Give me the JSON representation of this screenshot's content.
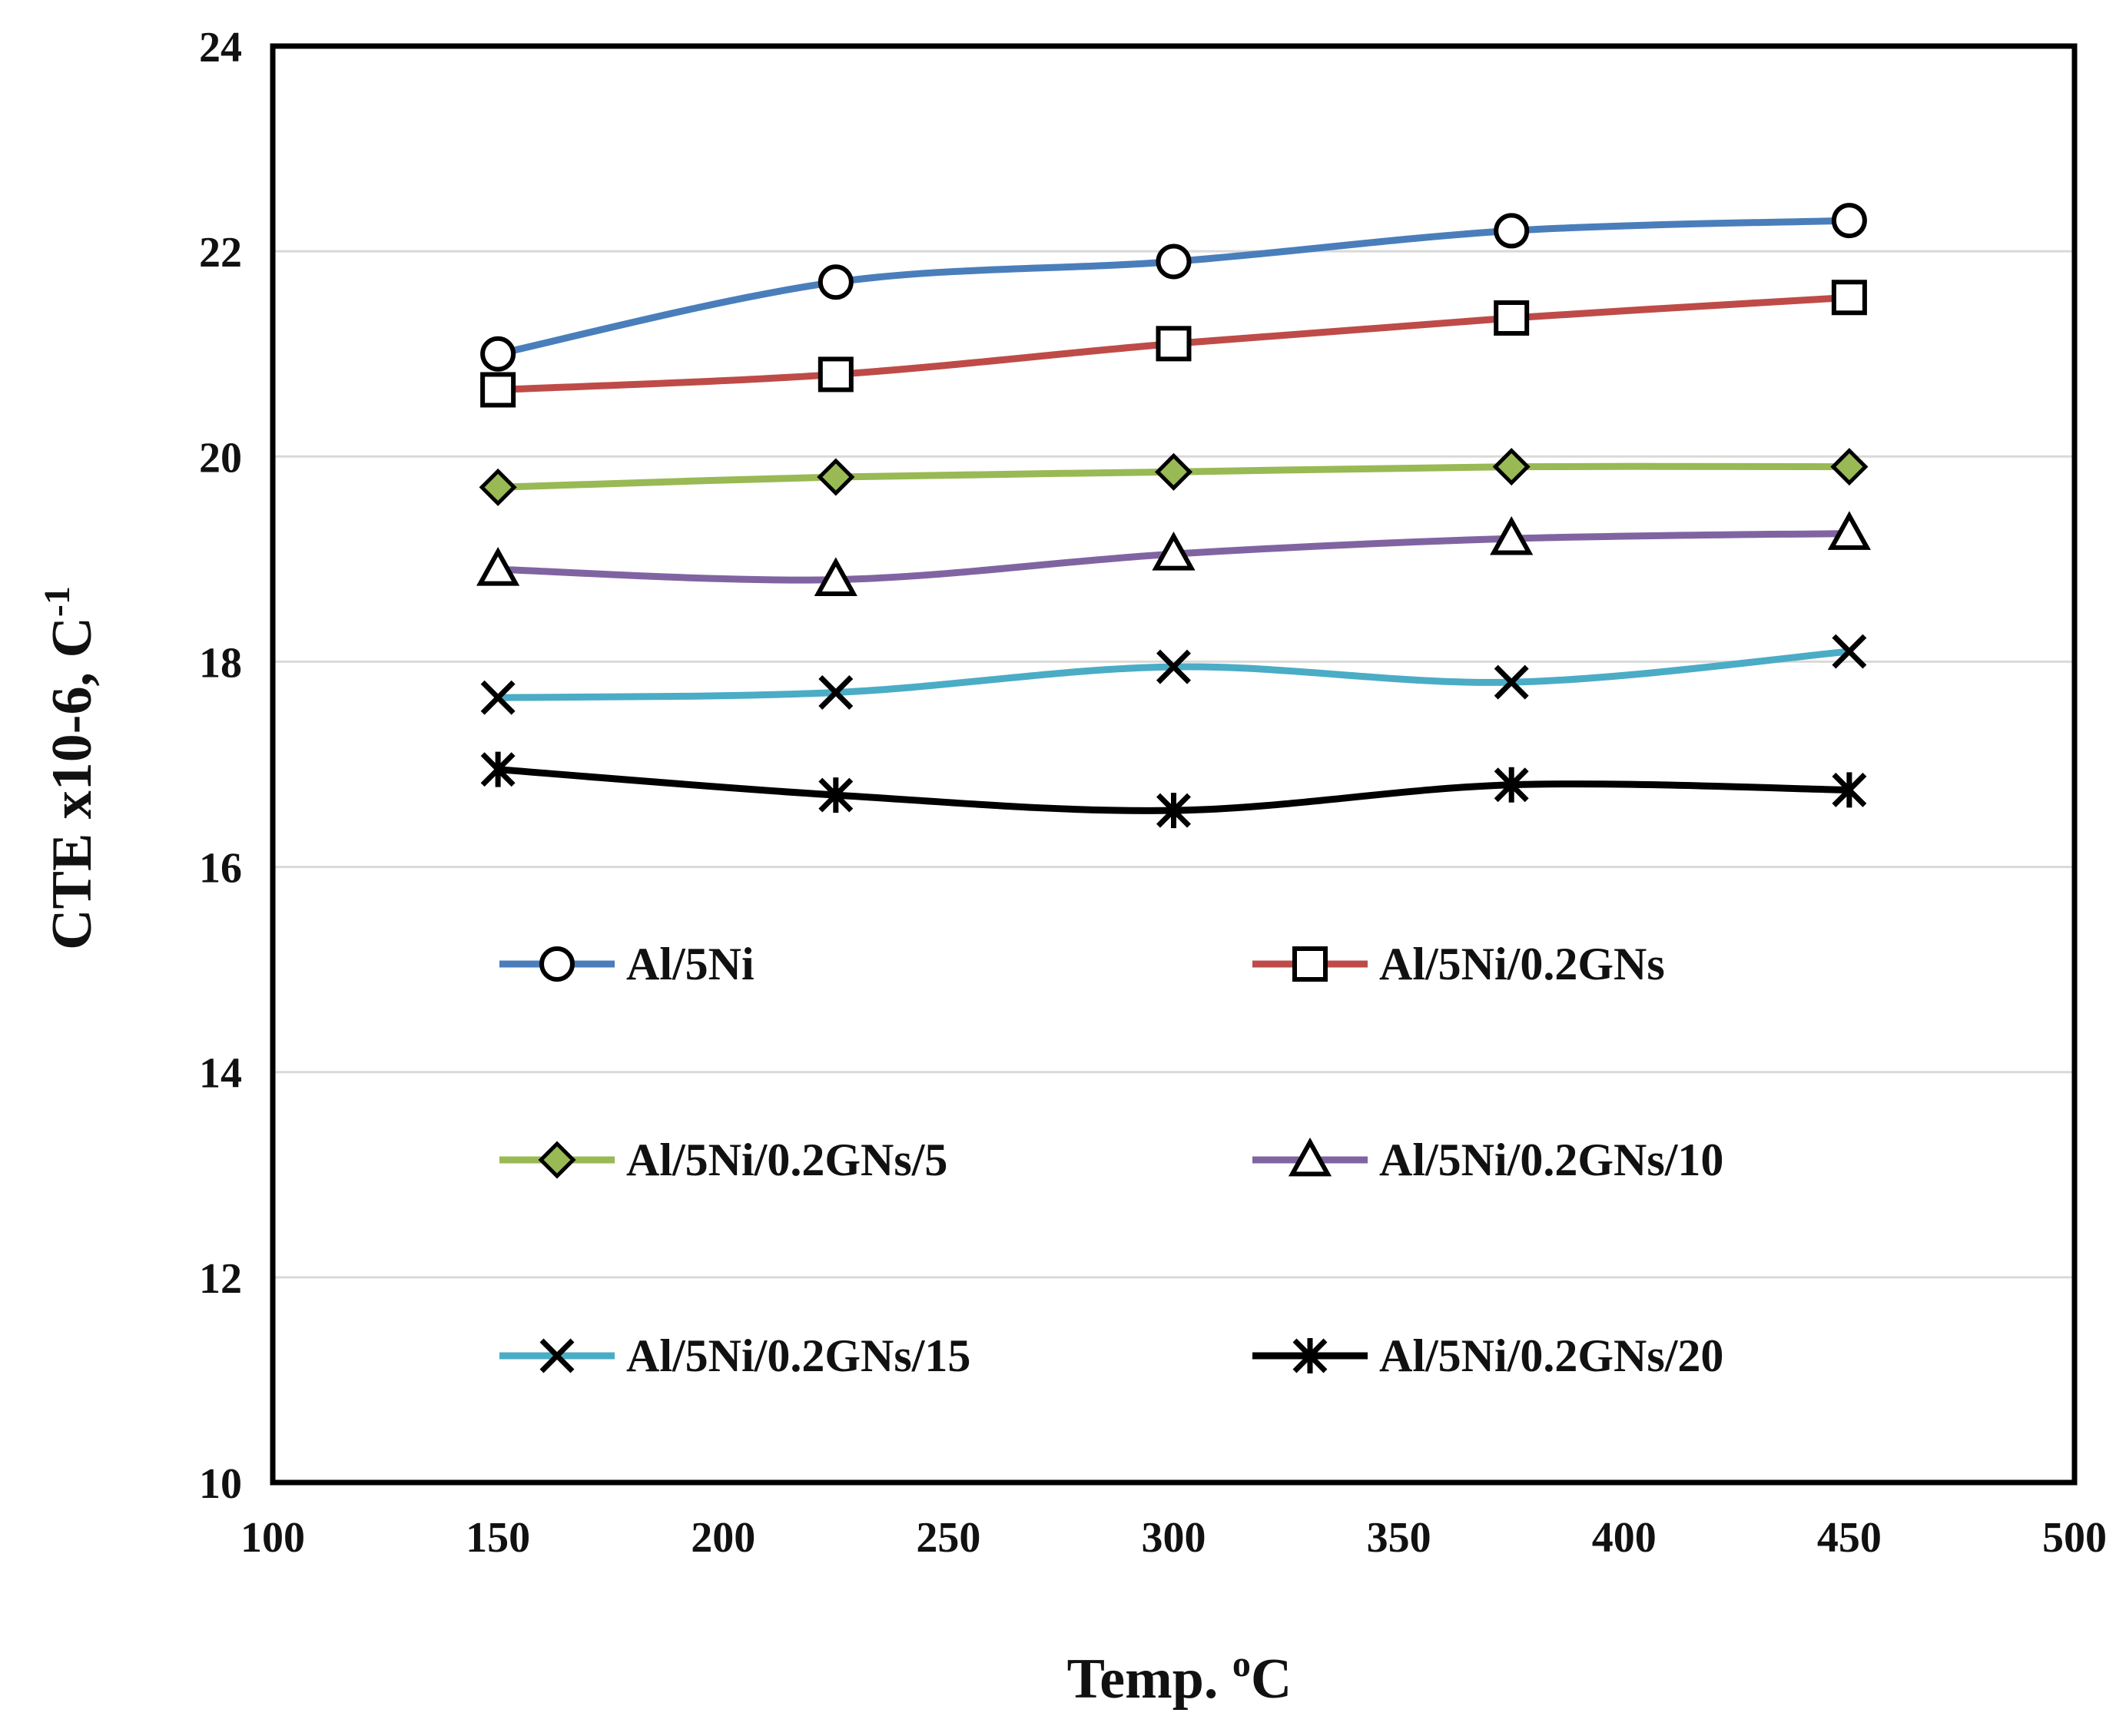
{
  "chart_data": {
    "type": "line",
    "title": "",
    "xlabel": "Temp. ",
    "xlabel_sup": "o",
    "xlabel_unit": "C",
    "ylabel": "CTE x10-6, C",
    "ylabel_sup": "-1",
    "xlim": [
      100,
      500
    ],
    "ylim": [
      10,
      24
    ],
    "xticks": [
      100,
      150,
      200,
      250,
      300,
      350,
      400,
      450,
      500
    ],
    "yticks": [
      10,
      12,
      14,
      16,
      18,
      20,
      22,
      24
    ],
    "grid": "horizontal",
    "legend_position": "inside-lower",
    "x": [
      150,
      225,
      300,
      375,
      450
    ],
    "series": [
      {
        "name": "Al/5Ni",
        "color": "#4a7ebb",
        "marker": "circle",
        "values": [
          21.0,
          21.7,
          21.9,
          22.2,
          22.3
        ]
      },
      {
        "name": "Al/5Ni/0.2GNs",
        "color": "#be4b48",
        "marker": "square",
        "values": [
          20.65,
          20.8,
          21.1,
          21.35,
          21.55
        ]
      },
      {
        "name": "Al/5Ni/0.2GNs/5",
        "color": "#98b954",
        "marker": "diamond",
        "values": [
          19.7,
          19.8,
          19.85,
          19.9,
          19.9
        ]
      },
      {
        "name": "Al/5Ni/0.2GNs/10",
        "color": "#8064a2",
        "marker": "triangle",
        "values": [
          18.9,
          18.8,
          19.05,
          19.2,
          19.25
        ]
      },
      {
        "name": "Al/5Ni/0.2GNs/15",
        "color": "#4bacc6",
        "marker": "x",
        "values": [
          17.65,
          17.7,
          17.95,
          17.8,
          18.1
        ]
      },
      {
        "name": "Al/5Ni/0.2GNs/20",
        "color": "#000000",
        "marker": "star",
        "values": [
          16.95,
          16.7,
          16.55,
          16.8,
          16.75
        ]
      }
    ]
  }
}
